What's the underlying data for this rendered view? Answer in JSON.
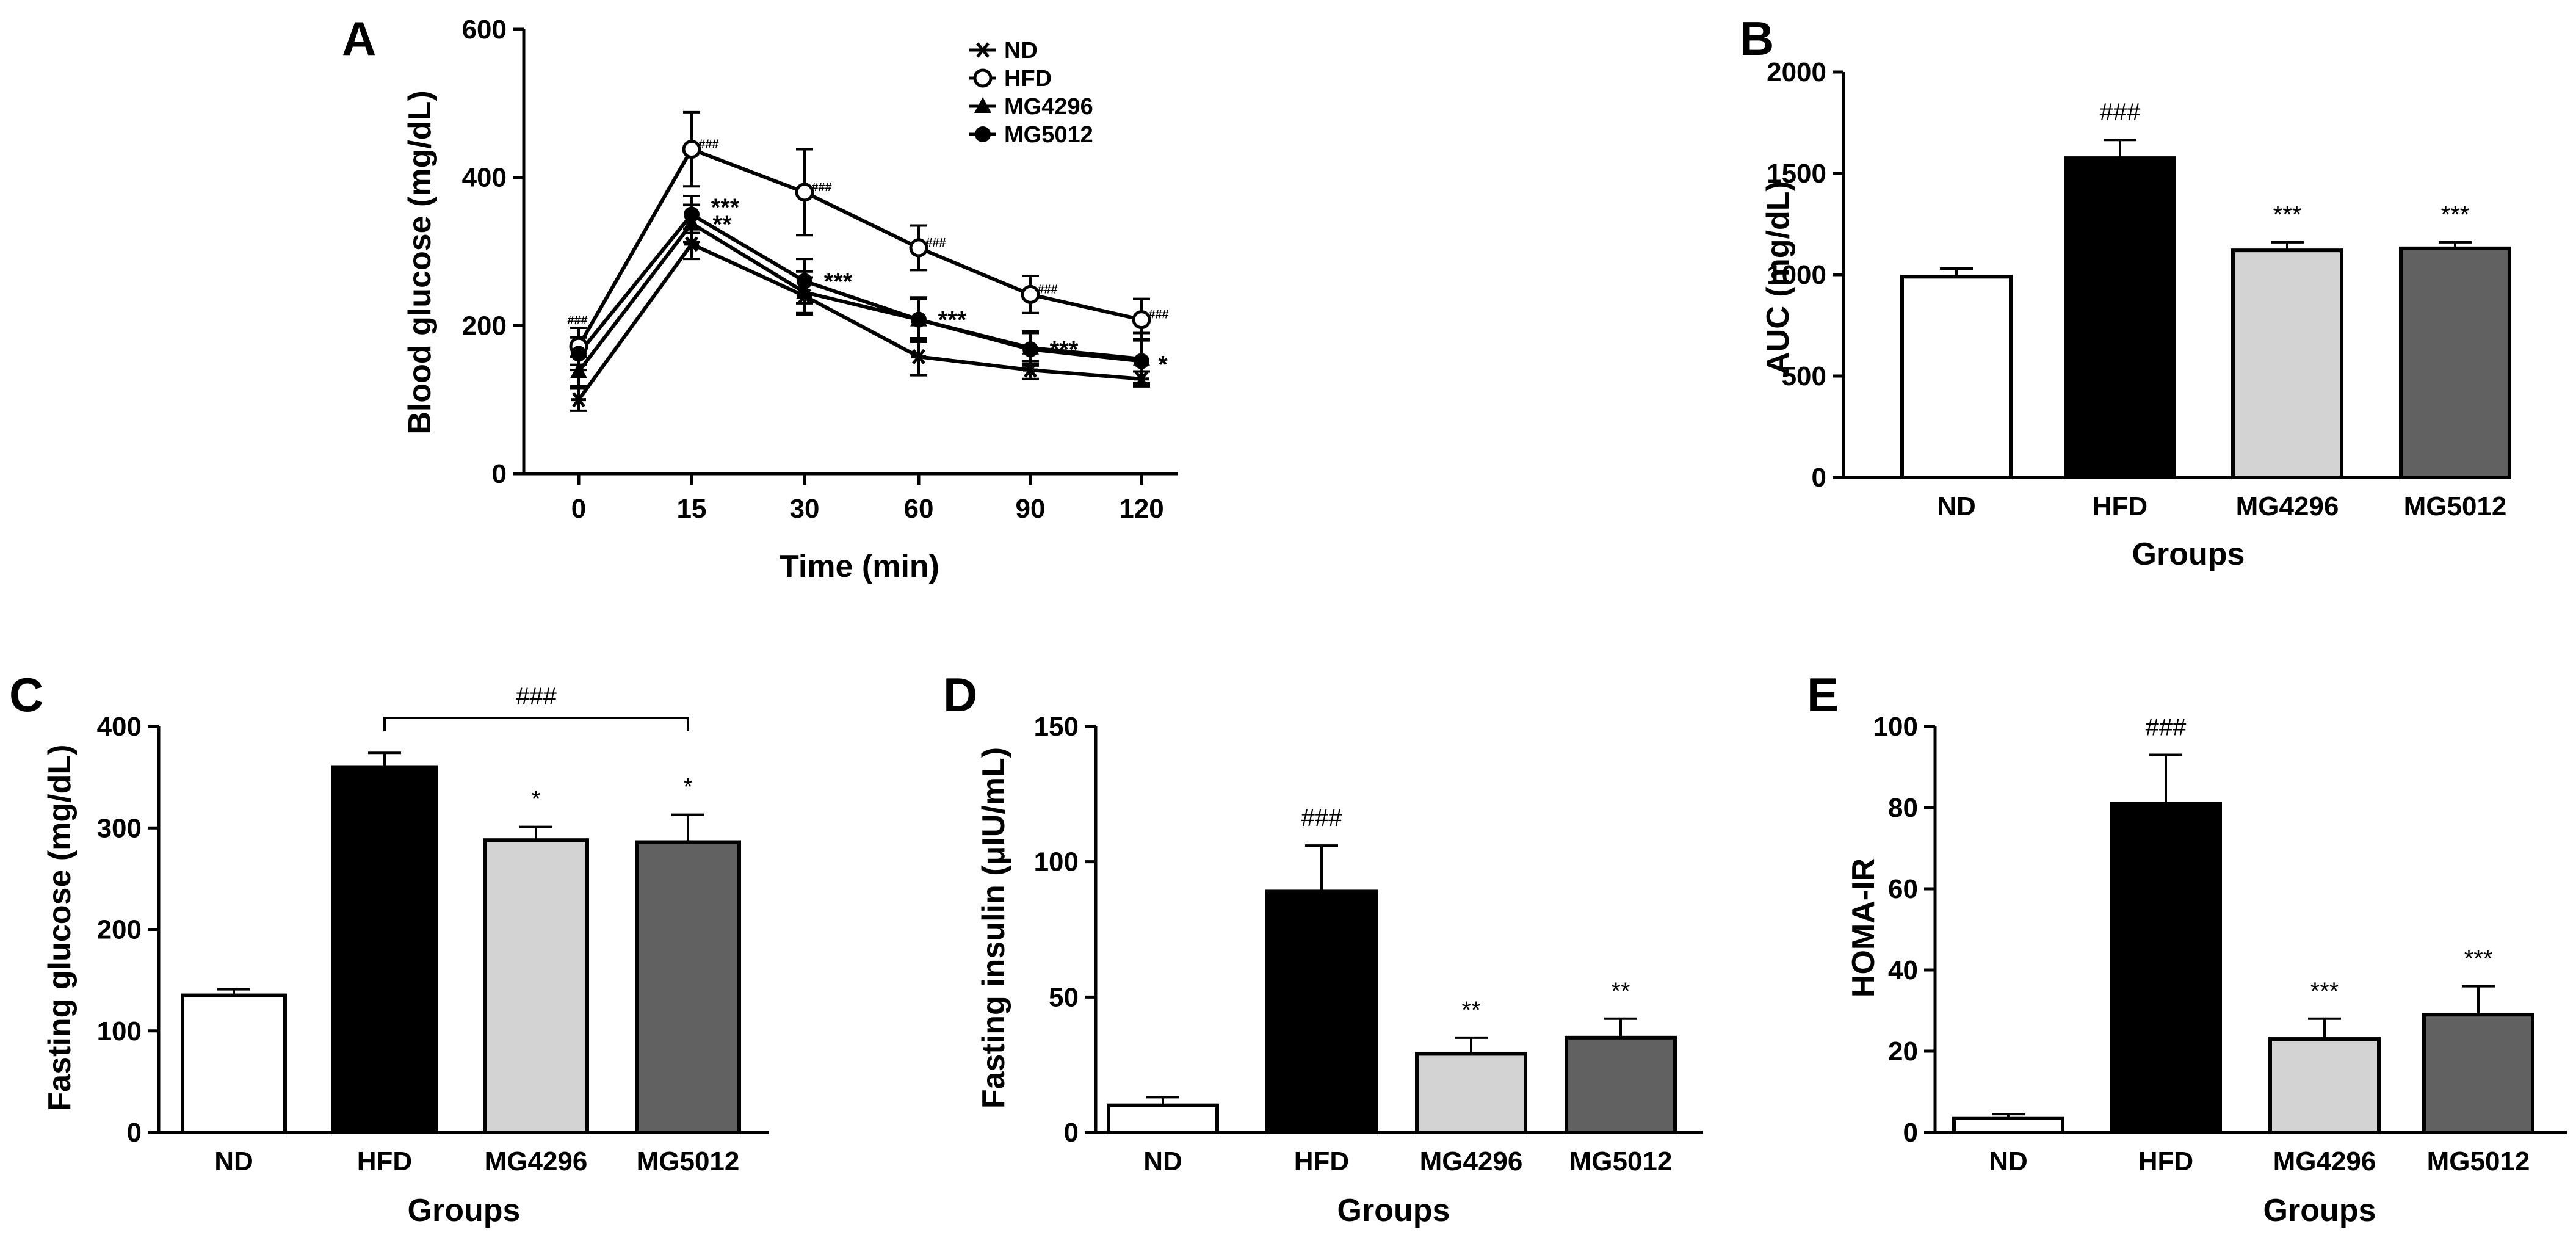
{
  "colors": {
    "ND": "#ffffff",
    "HFD": "#000000",
    "MG4296": "#d3d3d3",
    "MG5012": "#616161",
    "stroke": "#000000"
  },
  "chart_data": [
    {
      "panel": "A",
      "type": "line",
      "xlabel": "Time (min)",
      "ylabel": "Blood glucose (mg/dL)",
      "x": [
        0,
        15,
        30,
        60,
        90,
        120
      ],
      "x_ticks": [
        "0",
        "15",
        "30",
        "60",
        "90",
        "120"
      ],
      "ylim": [
        0,
        600
      ],
      "y_ticks": [
        0,
        200,
        400,
        600
      ],
      "legend_position": "top-right",
      "series": [
        {
          "name": "ND",
          "marker": "star",
          "values": [
            100,
            310,
            240,
            158,
            140,
            128
          ],
          "errors": [
            15,
            20,
            25,
            25,
            12,
            10
          ]
        },
        {
          "name": "HFD",
          "marker": "open-circle",
          "values": [
            172,
            438,
            380,
            305,
            242,
            208
          ],
          "errors": [
            25,
            50,
            58,
            30,
            25,
            28
          ]
        },
        {
          "name": "MG4296",
          "marker": "triangle",
          "values": [
            138,
            338,
            245,
            208,
            170,
            155
          ],
          "errors": [
            20,
            25,
            28,
            30,
            22,
            35
          ]
        },
        {
          "name": "MG5012",
          "marker": "filled-circle",
          "values": [
            162,
            350,
            260,
            208,
            168,
            152
          ],
          "errors": [
            22,
            25,
            30,
            28,
            22,
            30
          ]
        }
      ],
      "annotations": [
        {
          "x": 0,
          "y": 182,
          "text": "###",
          "dx": -2,
          "dy": -30,
          "small": true
        },
        {
          "x": 15,
          "y": 438,
          "text": "###",
          "dx": 28,
          "dy": -8,
          "small": true
        },
        {
          "x": 30,
          "y": 380,
          "text": "###",
          "dx": 28,
          "dy": -8,
          "small": true
        },
        {
          "x": 60,
          "y": 305,
          "text": "###",
          "dx": 28,
          "dy": -8,
          "small": true
        },
        {
          "x": 90,
          "y": 242,
          "text": "###",
          "dx": 28,
          "dy": -8,
          "small": true
        },
        {
          "x": 120,
          "y": 208,
          "text": "###",
          "dx": 28,
          "dy": -8,
          "small": true
        },
        {
          "x": 15,
          "y": 360,
          "text": "***",
          "dx": 55,
          "dy": 0,
          "small": false
        },
        {
          "x": 15,
          "y": 337,
          "text": "**",
          "dx": 50,
          "dy": 0,
          "small": false
        },
        {
          "x": 30,
          "y": 260,
          "text": "***",
          "dx": 55,
          "dy": 0,
          "small": false
        },
        {
          "x": 60,
          "y": 208,
          "text": "***",
          "dx": 55,
          "dy": 0,
          "small": false
        },
        {
          "x": 90,
          "y": 168,
          "text": "***",
          "dx": 55,
          "dy": 0,
          "small": false
        },
        {
          "x": 120,
          "y": 148,
          "text": "*",
          "dx": 35,
          "dy": 0,
          "small": false
        }
      ]
    },
    {
      "panel": "B",
      "type": "bar",
      "categories": [
        "ND",
        "HFD",
        "MG4296",
        "MG5012"
      ],
      "values": [
        990,
        1575,
        1120,
        1130
      ],
      "errors": [
        40,
        90,
        40,
        30
      ],
      "sig_labels": [
        "",
        "###",
        "***",
        "***"
      ],
      "ylim": [
        0,
        2000
      ],
      "y_ticks": [
        0,
        500,
        1000,
        1500,
        2000
      ],
      "xlabel": "Groups",
      "ylabel": "AUC (mg/dL)"
    },
    {
      "panel": "C",
      "type": "bar",
      "categories": [
        "ND",
        "HFD",
        "MG4296",
        "MG5012"
      ],
      "values": [
        135,
        360,
        288,
        286
      ],
      "errors": [
        6,
        14,
        13,
        27
      ],
      "sig_labels": [
        "",
        "",
        "*",
        "*"
      ],
      "bracket": {
        "from": 1,
        "to": 3,
        "label": "###"
      },
      "ylim": [
        0,
        400
      ],
      "y_ticks": [
        0,
        100,
        200,
        300,
        400
      ],
      "xlabel": "Groups",
      "ylabel": "Fasting glucose (mg/dL)"
    },
    {
      "panel": "D",
      "type": "bar",
      "categories": [
        "ND",
        "HFD",
        "MG4296",
        "MG5012"
      ],
      "values": [
        10,
        89,
        29,
        35
      ],
      "errors": [
        3,
        17,
        6,
        7
      ],
      "sig_labels": [
        "",
        "###",
        "**",
        "**"
      ],
      "ylim": [
        0,
        150
      ],
      "y_ticks": [
        0,
        50,
        100,
        150
      ],
      "xlabel": "Groups",
      "ylabel": "Fasting insulin (μIU/mL)"
    },
    {
      "panel": "E",
      "type": "bar",
      "categories": [
        "ND",
        "HFD",
        "MG4296",
        "MG5012"
      ],
      "values": [
        3.5,
        81,
        23,
        29
      ],
      "errors": [
        1,
        12,
        5,
        7
      ],
      "sig_labels": [
        "",
        "###",
        "***",
        "***"
      ],
      "ylim": [
        0,
        100
      ],
      "y_ticks": [
        0,
        20,
        40,
        60,
        80,
        100
      ],
      "xlabel": "Groups",
      "ylabel": "HOMA-IR"
    }
  ]
}
